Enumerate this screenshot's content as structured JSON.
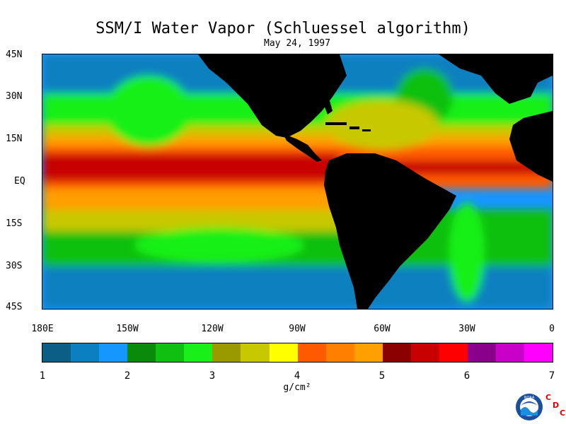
{
  "header": {
    "title": "SSM/I Water Vapor (Schluessel algorithm)",
    "date": "May 24, 1997"
  },
  "lat_labels": [
    "45N",
    "30N",
    "15N",
    "EQ",
    "15S",
    "30S",
    "45S"
  ],
  "lon_labels": [
    "180E",
    "150W",
    "120W",
    "90W",
    "60W",
    "30W",
    "0"
  ],
  "colorbar": {
    "labels": [
      "1",
      "2",
      "3",
      "4",
      "5",
      "6",
      "7"
    ],
    "unit": "g/cm²",
    "colors": [
      "#0b5f86",
      "#0a80c0",
      "#1696ff",
      "#0a8a0a",
      "#10c010",
      "#19f019",
      "#9a9a00",
      "#c8c800",
      "#ffff00",
      "#ff5a00",
      "#ff7f00",
      "#ff9f00",
      "#8b0000",
      "#c80000",
      "#ff0000",
      "#8b008b",
      "#c800c8",
      "#ff00ff"
    ]
  },
  "logo": {
    "text": "NOAA",
    "lab_letters": [
      "C",
      "D",
      "C"
    ]
  }
}
